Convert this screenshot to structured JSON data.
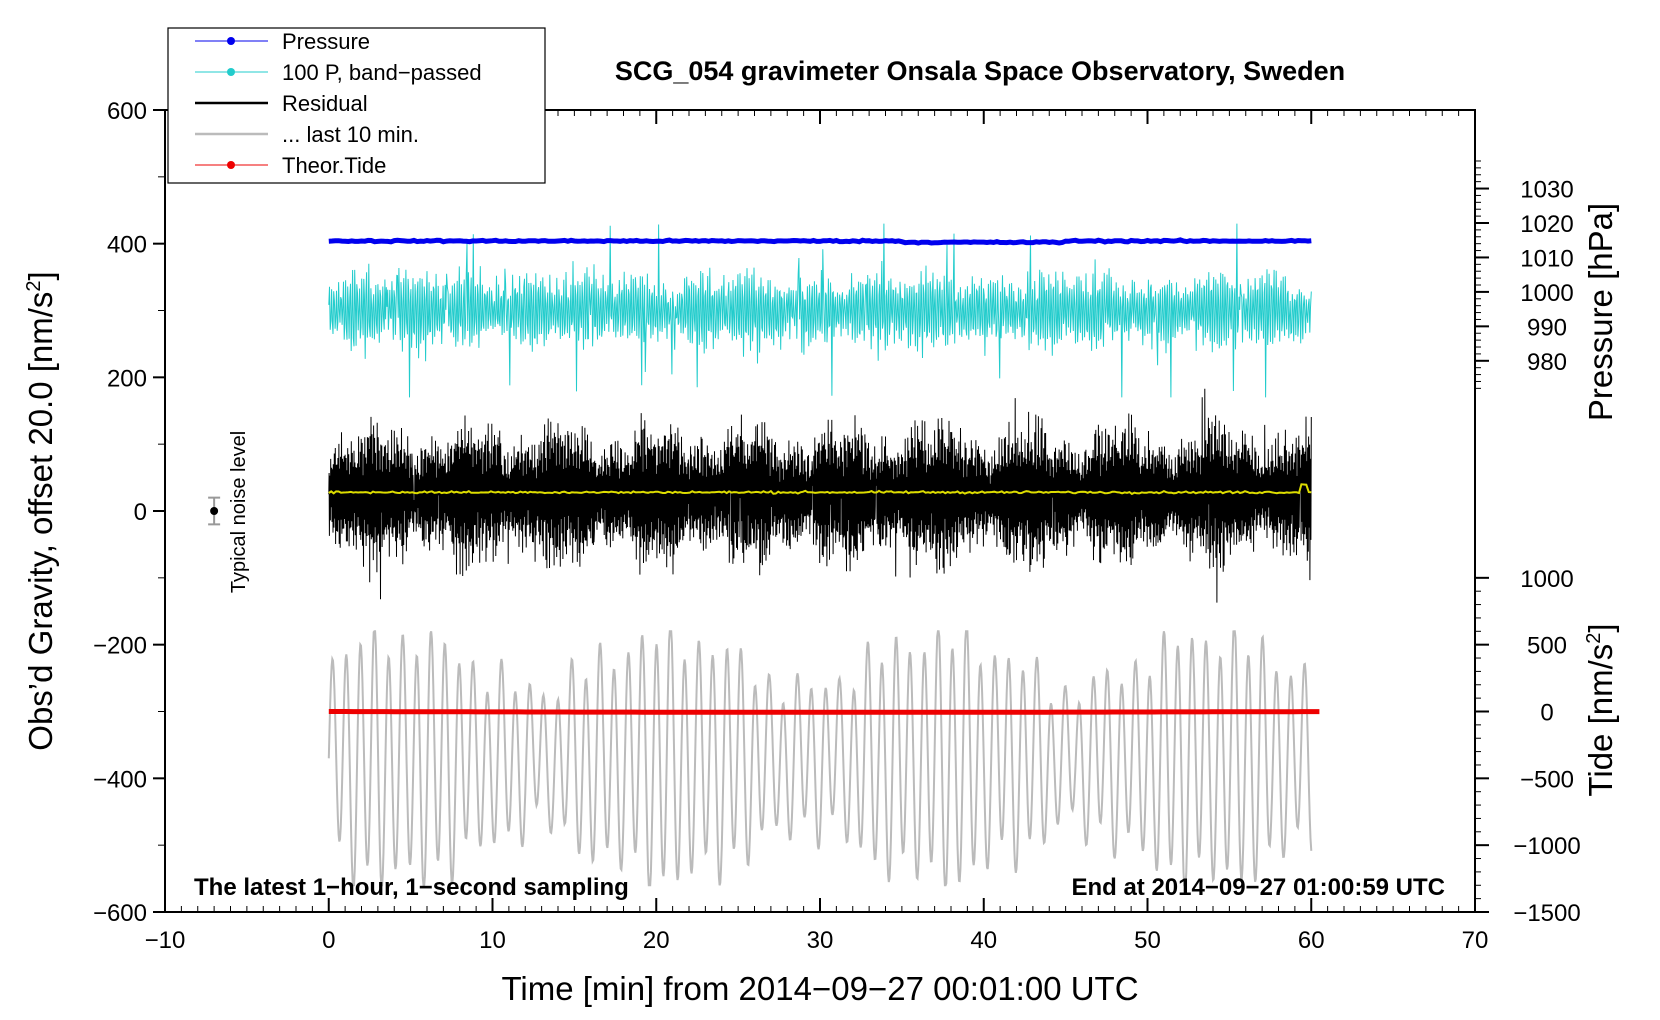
{
  "chart_data": {
    "type": "line",
    "title": "SCG_054 gravimeter Onsala Space Observatory, Sweden",
    "xlabel": "Time [min] from 2014−09−27 00:01:00 UTC",
    "ylabel_left": "Obs’d Gravity, offset 20.0 [nms²]",
    "ylabel_left_main": "Obs’d Gravity, offset 20.0 [nm/s",
    "ylabel_left_sup": "2",
    "ylabel_left_close": "]",
    "ylabel_right_pressure": "Pressure [hPa]",
    "ylabel_right_tide_main": "Tide [nm/s",
    "ylabel_right_tide_sup": "2",
    "ylabel_right_tide_close": "]",
    "xlim": [
      -10,
      70
    ],
    "ylim_left": [
      -600,
      600
    ],
    "x_ticks": [
      -10,
      0,
      10,
      20,
      30,
      40,
      50,
      60,
      70
    ],
    "x_tick_labels": [
      "−10",
      "0",
      "10",
      "20",
      "30",
      "40",
      "50",
      "60",
      "70"
    ],
    "y_left_ticks": [
      600,
      400,
      200,
      0,
      -200,
      -400,
      -600
    ],
    "y_left_tick_labels": [
      "600",
      "400",
      "200",
      "0",
      "−200",
      "−400",
      "−600"
    ],
    "pressure_ticks": [
      1030,
      1020,
      1010,
      1000,
      990,
      980
    ],
    "pressure_tick_labels": [
      "1030",
      "1020",
      "1010",
      "1000",
      "990",
      "980"
    ],
    "pressure_axis_map": {
      "value_at_left_400": 1014,
      "units_per_left": 0.194
    },
    "tide_ticks": [
      1000,
      500,
      0,
      -500,
      -1000,
      -1500
    ],
    "tide_tick_labels": [
      "1000",
      "500",
      "0",
      "−500",
      "−1000",
      "−1500"
    ],
    "tide_axis_map": {
      "value_at_left_minus300": 0,
      "units_per_left": 5.0
    },
    "legend": [
      {
        "label": "Pressure",
        "color": "#0000ee",
        "style": "line-dot"
      },
      {
        "label": "100 P, band−passed",
        "color": "#22cccc",
        "style": "line-dot"
      },
      {
        "label": "Residual",
        "color": "#000000",
        "style": "line"
      },
      {
        "label": "... last 10 min.",
        "color": "#bbbbbb",
        "style": "line"
      },
      {
        "label": "Theor.Tide",
        "color": "#ee0000",
        "style": "line-dot"
      }
    ],
    "series": [
      {
        "name": "Pressure",
        "color": "#0000ee",
        "x_range": [
          0,
          60
        ],
        "left_axis_value": 404,
        "noise": 2
      },
      {
        "name": "100 P, band−passed",
        "color": "#22cccc",
        "x_range": [
          0,
          60
        ],
        "left_axis_center": 300,
        "amplitude_range": [
          -130,
          130
        ]
      },
      {
        "name": "Residual",
        "color": "#000000",
        "x_range": [
          0,
          60
        ],
        "left_axis_center": 25,
        "amplitude_range": [
          -170,
          230
        ]
      },
      {
        "name": "Residual (smoothed)",
        "color": "#dddd00",
        "x_range": [
          0,
          60
        ],
        "left_axis_value": 28
      },
      {
        "name": "... last 10 min.",
        "color": "#bbbbbb",
        "x_range": [
          0,
          60
        ],
        "left_axis_range": [
          -560,
          -180
        ]
      },
      {
        "name": "Theor.Tide",
        "color": "#ee0000",
        "x_range": [
          0,
          60.5
        ],
        "left_axis_value": -300
      }
    ],
    "noise_bar": {
      "x": -7,
      "y": 0,
      "error": 20,
      "label": "Typical noise level"
    },
    "annotation_left": "The latest 1−hour, 1−second sampling",
    "annotation_right": "End at 2014−09−27 01:00:59 UTC"
  },
  "colors": {
    "pressure": "#0000ee",
    "bandpassed": "#22cccc",
    "residual": "#000000",
    "smoothed": "#dddd00",
    "last10": "#bbbbbb",
    "tide": "#ee0000"
  }
}
